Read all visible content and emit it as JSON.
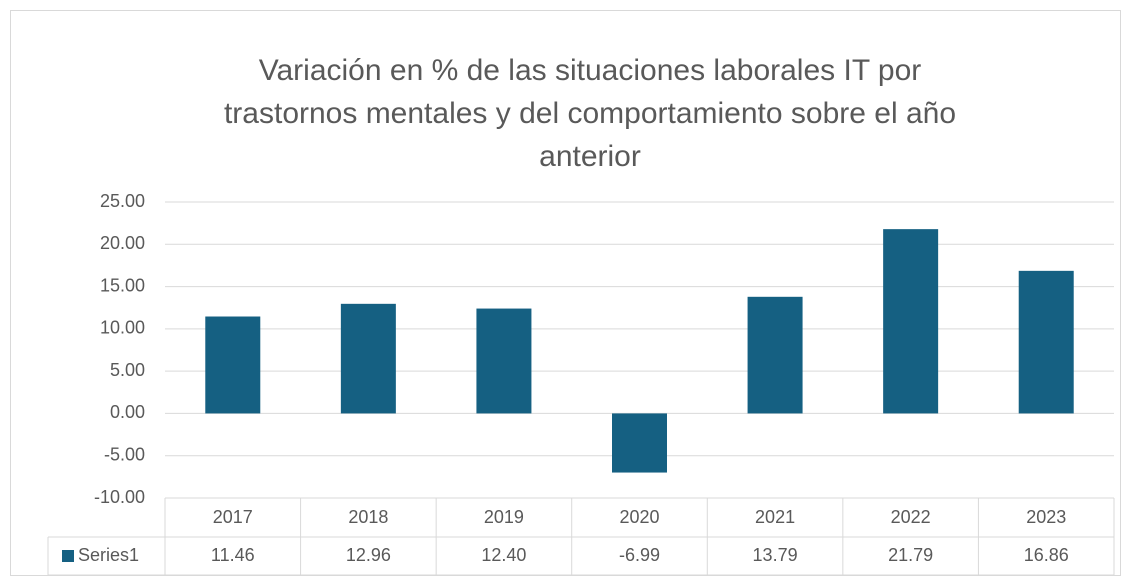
{
  "chart_data": {
    "type": "bar",
    "title": [
      "Variación en % de las situaciones laborales IT por",
      "trastornos mentales y del comportamiento sobre el año",
      "anterior"
    ],
    "categories": [
      "2017",
      "2018",
      "2019",
      "2020",
      "2021",
      "2022",
      "2023"
    ],
    "series": [
      {
        "name": "Series1",
        "color": "#156082",
        "values": [
          11.46,
          12.96,
          12.4,
          -6.99,
          13.79,
          21.79,
          16.86
        ],
        "value_labels": [
          "11.46",
          "12.96",
          "12.40",
          "-6.99",
          "13.79",
          "21.79",
          "16.86"
        ]
      }
    ],
    "ylim": [
      -10,
      25
    ],
    "yticks": [
      {
        "value": 25,
        "label": "25.00"
      },
      {
        "value": 20,
        "label": "20.00"
      },
      {
        "value": 15,
        "label": "15.00"
      },
      {
        "value": 10,
        "label": "10.00"
      },
      {
        "value": 5,
        "label": "5.00"
      },
      {
        "value": 0,
        "label": "0.00"
      },
      {
        "value": -5,
        "label": "-5.00"
      },
      {
        "value": -10,
        "label": "-10.00"
      }
    ],
    "grid": true,
    "data_table": true
  }
}
